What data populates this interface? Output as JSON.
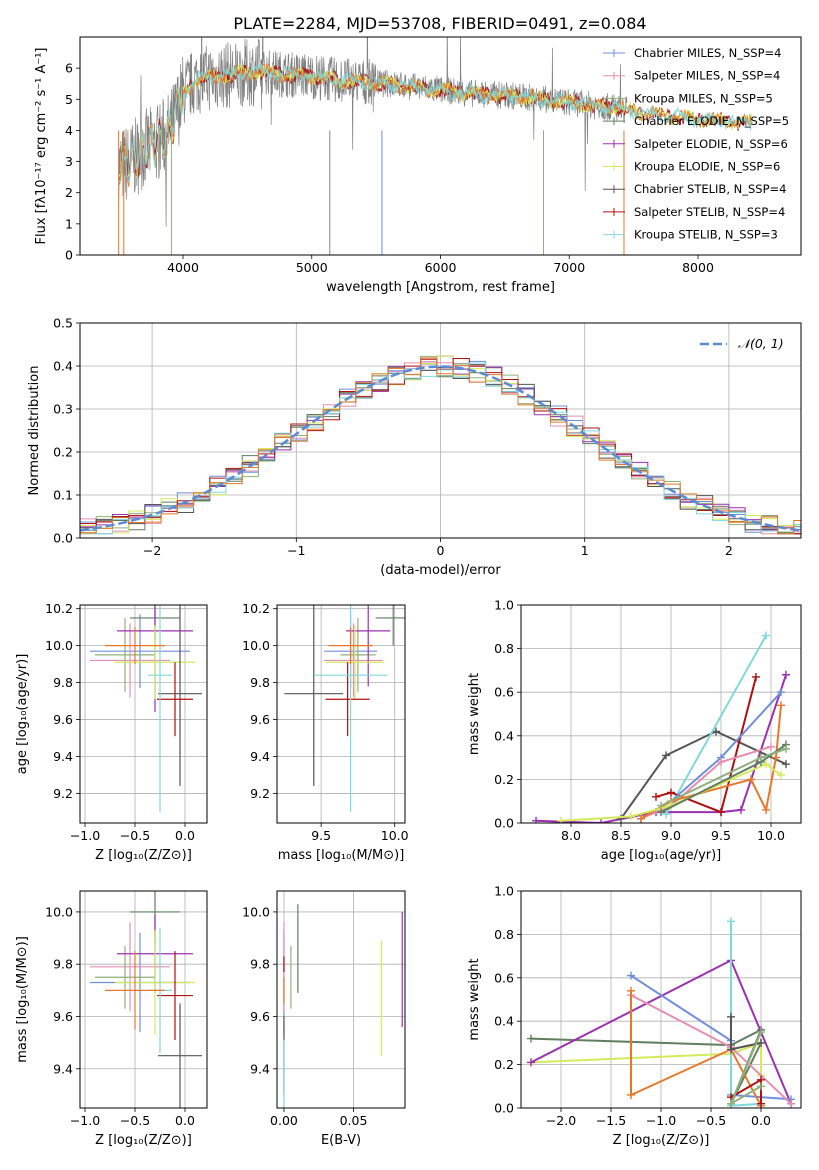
{
  "figure_title": "PLATE=2284, MJD=53708, FIBERID=0491, z=0.084",
  "colors": {
    "chabrier_miles": "#6f8fdc",
    "salpeter_miles": "#e58fb0",
    "kroupa_miles": "#8fb07a",
    "chabrier_elodie": "#5f7f5f",
    "salpeter_elodie": "#9b30b0",
    "kroupa_elodie": "#d4ea5a",
    "chabrier_stelib": "#555555",
    "salpeter_stelib": "#b01010",
    "kroupa_stelib": "#7fd8dc",
    "orange": "#e87828",
    "normal_curve": "#5b8ad6",
    "data_spectrum": "#808080",
    "grid": "#b0b0b0"
  },
  "chart_data": [
    {
      "id": "spectrum",
      "type": "line",
      "xlabel": "wavelength [Angstrom, rest frame]",
      "ylabel": "Flux [fλ10⁻¹⁷ erg cm⁻² s⁻¹ A⁻¹]",
      "xlim": [
        3200,
        8800
      ],
      "ylim": [
        0,
        7
      ],
      "xticks": [
        4000,
        5000,
        6000,
        7000,
        8000
      ],
      "yticks": [
        0,
        1,
        2,
        3,
        4,
        5,
        6
      ],
      "grid": false,
      "legend_position": "top-right",
      "data_continuum": {
        "x": [
          3500,
          3600,
          3700,
          3800,
          3900,
          4000,
          4100,
          4200,
          4400,
          4600,
          4800,
          5000,
          5200,
          5400,
          5600,
          5800,
          6000,
          6200,
          6400,
          6600,
          6800,
          7000,
          7200,
          7400,
          7600,
          7800,
          8000,
          8200,
          8400
        ],
        "y": [
          2.8,
          3.0,
          3.4,
          3.6,
          4.0,
          5.2,
          5.6,
          5.7,
          5.8,
          5.9,
          5.8,
          5.75,
          5.6,
          5.55,
          5.5,
          5.4,
          5.3,
          5.2,
          5.15,
          5.1,
          5.0,
          4.9,
          4.8,
          4.7,
          4.55,
          4.45,
          4.35,
          4.3,
          4.25
        ]
      },
      "series": [
        {
          "name": "Chabrier MILES, N_SSP=4",
          "color_key": "chabrier_miles"
        },
        {
          "name": "Salpeter MILES, N_SSP=4",
          "color_key": "salpeter_miles"
        },
        {
          "name": "Kroupa MILES, N_SSP=5",
          "color_key": "kroupa_miles"
        },
        {
          "name": "Chabrier ELODIE, N_SSP=5",
          "color_key": "chabrier_elodie"
        },
        {
          "name": "Salpeter ELODIE, N_SSP=6",
          "color_key": "salpeter_elodie"
        },
        {
          "name": "Kroupa ELODIE, N_SSP=6",
          "color_key": "kroupa_elodie"
        },
        {
          "name": "Chabrier STELIB, N_SSP=4",
          "color_key": "chabrier_stelib"
        },
        {
          "name": "Salpeter STELIB, N_SSP=4",
          "color_key": "salpeter_stelib"
        },
        {
          "name": "Kroupa STELIB, N_SSP=3",
          "color_key": "kroupa_stelib"
        }
      ]
    },
    {
      "id": "residuals",
      "type": "line",
      "xlabel": "(data-model)/error",
      "ylabel": "Normed distribution",
      "xlim": [
        -2.5,
        2.5
      ],
      "ylim": [
        0,
        0.5
      ],
      "xticks": [
        -2,
        -1,
        0,
        1,
        2
      ],
      "yticks": [
        0.0,
        0.1,
        0.2,
        0.3,
        0.4,
        0.5
      ],
      "grid": true,
      "legend_position": "top-right",
      "legend_label": "𝒩(0, 1)",
      "normal": {
        "mean": 0,
        "sigma": 1
      }
    },
    {
      "id": "age_vs_Z",
      "type": "scatter",
      "xlabel": "Z [log₁₀(Z/Z⊙)]",
      "ylabel": "age  [log₁₀(age/yr)]",
      "xlim": [
        -1.05,
        0.22
      ],
      "ylim": [
        9.04,
        10.22
      ],
      "xticks": [
        -1.0,
        -0.5,
        0.0
      ],
      "yticks": [
        9.2,
        9.4,
        9.6,
        9.8,
        10.0,
        10.2
      ],
      "grid": true,
      "points": [
        {
          "color_key": "chabrier_miles",
          "x": -0.45,
          "xerr": 0.5,
          "y": 9.97,
          "yerr": 0.2
        },
        {
          "color_key": "salpeter_miles",
          "x": -0.55,
          "xerr": 0.4,
          "y": 9.92,
          "yerr": 0.2
        },
        {
          "color_key": "kroupa_miles",
          "x": -0.6,
          "xerr": 0.3,
          "y": 9.95,
          "yerr": 0.2
        },
        {
          "color_key": "chabrier_elodie",
          "x": -0.3,
          "xerr": 0.25,
          "y": 10.15,
          "yerr": 0.12
        },
        {
          "color_key": "salpeter_elodie",
          "x": -0.3,
          "xerr": 0.38,
          "y": 10.08,
          "yerr": 0.44
        },
        {
          "color_key": "kroupa_elodie",
          "x": -0.3,
          "xerr": 0.4,
          "y": 9.91,
          "yerr": 0.2
        },
        {
          "color_key": "chabrier_stelib",
          "x": -0.05,
          "xerr": 0.22,
          "y": 9.74,
          "yerr": 0.5
        },
        {
          "color_key": "salpeter_stelib",
          "x": -0.1,
          "xerr": 0.18,
          "y": 9.71,
          "yerr": 0.2
        },
        {
          "color_key": "kroupa_stelib",
          "x": -0.25,
          "xerr": 0.12,
          "y": 9.84,
          "yerr": 0.74
        },
        {
          "color_key": "orange",
          "x": -0.5,
          "xerr": 0.3,
          "y": 10.0,
          "yerr": 0.1
        }
      ]
    },
    {
      "id": "age_vs_mass",
      "type": "scatter",
      "xlabel": "mass [log₁₀(M/M⊙)]",
      "ylabel": "",
      "xlim": [
        9.2,
        10.07
      ],
      "ylim": [
        9.04,
        10.22
      ],
      "xticks": [
        9.5,
        10.0
      ],
      "yticks": [
        9.2,
        9.4,
        9.6,
        9.8,
        10.0,
        10.2
      ],
      "grid": true,
      "points": [
        {
          "color_key": "chabrier_miles",
          "x": 9.7,
          "xerr": 0.18,
          "y": 9.97,
          "yerr": 0.2
        },
        {
          "color_key": "salpeter_miles",
          "x": 9.72,
          "xerr": 0.2,
          "y": 9.92,
          "yerr": 0.2
        },
        {
          "color_key": "kroupa_miles",
          "x": 9.75,
          "xerr": 0.12,
          "y": 9.95,
          "yerr": 0.2
        },
        {
          "color_key": "chabrier_elodie",
          "x": 9.99,
          "xerr": 0.12,
          "y": 10.15,
          "yerr": 0.15
        },
        {
          "color_key": "salpeter_elodie",
          "x": 9.82,
          "xerr": 0.15,
          "y": 10.08,
          "yerr": 0.3
        },
        {
          "color_key": "kroupa_elodie",
          "x": 9.73,
          "xerr": 0.2,
          "y": 9.91,
          "yerr": 0.2
        },
        {
          "color_key": "chabrier_stelib",
          "x": 9.45,
          "xerr": 0.2,
          "y": 9.74,
          "yerr": 0.5
        },
        {
          "color_key": "salpeter_stelib",
          "x": 9.68,
          "xerr": 0.15,
          "y": 9.71,
          "yerr": 0.2
        },
        {
          "color_key": "kroupa_stelib",
          "x": 9.7,
          "xerr": 0.25,
          "y": 9.84,
          "yerr": 0.74
        },
        {
          "color_key": "orange",
          "x": 9.7,
          "xerr": 0.15,
          "y": 10.0,
          "yerr": 0.1
        }
      ]
    },
    {
      "id": "mass_weight_vs_age",
      "type": "line",
      "xlabel": "age  [log₁₀(age/yr)]",
      "ylabel": "mass weight",
      "xlim": [
        7.5,
        10.3
      ],
      "ylim": [
        0,
        1.0
      ],
      "xticks": [
        8.0,
        8.5,
        9.0,
        9.5,
        10.0
      ],
      "yticks": [
        0.0,
        0.2,
        0.4,
        0.6,
        0.8,
        1.0
      ],
      "grid": true,
      "series": [
        {
          "color_key": "salpeter_elodie",
          "x": [
            7.65,
            8.3,
            8.85,
            9.5,
            9.7,
            10.15
          ],
          "y": [
            0.01,
            0.0,
            0.05,
            0.05,
            0.06,
            0.68
          ]
        },
        {
          "color_key": "chabrier_stelib",
          "x": [
            8.5,
            8.95,
            9.45,
            10.15
          ],
          "y": [
            0.02,
            0.31,
            0.42,
            0.27
          ]
        },
        {
          "color_key": "kroupa_stelib",
          "x": [
            8.95,
            9.95
          ],
          "y": [
            0.04,
            0.86
          ]
        },
        {
          "color_key": "salpeter_stelib",
          "x": [
            8.85,
            9.0,
            9.5,
            9.85
          ],
          "y": [
            0.12,
            0.14,
            0.05,
            0.67
          ]
        },
        {
          "color_key": "chabrier_miles",
          "x": [
            8.7,
            9.0,
            9.5,
            10.1
          ],
          "y": [
            0.02,
            0.1,
            0.3,
            0.6
          ]
        },
        {
          "color_key": "salpeter_miles",
          "x": [
            8.7,
            9.0,
            9.5,
            10.0
          ],
          "y": [
            0.02,
            0.08,
            0.28,
            0.35
          ]
        },
        {
          "color_key": "orange",
          "x": [
            8.7,
            9.0,
            9.8,
            9.95,
            10.05,
            10.1
          ],
          "y": [
            0.02,
            0.1,
            0.2,
            0.06,
            0.3,
            0.54
          ]
        },
        {
          "color_key": "kroupa_elodie",
          "x": [
            7.9,
            8.6,
            9.0,
            9.95,
            10.1
          ],
          "y": [
            0.01,
            0.03,
            0.08,
            0.27,
            0.22
          ]
        },
        {
          "color_key": "chabrier_elodie",
          "x": [
            8.9,
            9.9,
            10.15
          ],
          "y": [
            0.05,
            0.28,
            0.36
          ]
        },
        {
          "color_key": "kroupa_miles",
          "x": [
            8.9,
            9.9,
            10.15
          ],
          "y": [
            0.08,
            0.3,
            0.34
          ]
        }
      ]
    },
    {
      "id": "mass_vs_Z",
      "type": "scatter",
      "xlabel": "Z [log₁₀(Z/Z⊙)]",
      "ylabel": "mass [log₁₀(M/M⊙)]",
      "xlim": [
        -1.05,
        0.22
      ],
      "ylim": [
        9.25,
        10.08
      ],
      "xticks": [
        -1.0,
        -0.5,
        0.0
      ],
      "yticks": [
        9.4,
        9.6,
        9.8,
        10.0
      ],
      "grid": true,
      "points": [
        {
          "color_key": "chabrier_miles",
          "x": -0.45,
          "xerr": 0.5,
          "y": 9.73,
          "yerr": 0.19
        },
        {
          "color_key": "salpeter_miles",
          "x": -0.55,
          "xerr": 0.4,
          "y": 9.79,
          "yerr": 0.17
        },
        {
          "color_key": "kroupa_miles",
          "x": -0.6,
          "xerr": 0.3,
          "y": 9.75,
          "yerr": 0.12
        },
        {
          "color_key": "chabrier_elodie",
          "x": -0.3,
          "xerr": 0.25,
          "y": 10.0,
          "yerr": 0.12
        },
        {
          "color_key": "salpeter_elodie",
          "x": -0.3,
          "xerr": 0.38,
          "y": 9.84,
          "yerr": 0.15
        },
        {
          "color_key": "kroupa_elodie",
          "x": -0.3,
          "xerr": 0.4,
          "y": 9.73,
          "yerr": 0.2
        },
        {
          "color_key": "chabrier_stelib",
          "x": -0.05,
          "xerr": 0.22,
          "y": 9.45,
          "yerr": 0.2
        },
        {
          "color_key": "salpeter_stelib",
          "x": -0.1,
          "xerr": 0.18,
          "y": 9.68,
          "yerr": 0.17
        },
        {
          "color_key": "kroupa_stelib",
          "x": -0.25,
          "xerr": 0.12,
          "y": 9.7,
          "yerr": 0.24
        },
        {
          "color_key": "orange",
          "x": -0.5,
          "xerr": 0.3,
          "y": 9.7,
          "yerr": 0.15
        }
      ]
    },
    {
      "id": "mass_vs_ebv",
      "type": "scatter",
      "xlabel": "E(B-V)",
      "ylabel": "",
      "xlim": [
        -0.005,
        0.087
      ],
      "ylim": [
        9.25,
        10.08
      ],
      "xticks": [
        0.0,
        0.05
      ],
      "yticks": [
        9.4,
        9.6,
        9.8,
        10.0
      ],
      "grid": true,
      "points": [
        {
          "color_key": "chabrier_miles",
          "x": 0.0,
          "xerr": 0.0,
          "y": 9.73,
          "yerr": 0.2
        },
        {
          "color_key": "salpeter_miles",
          "x": 0.0,
          "xerr": 0.0,
          "y": 9.79,
          "yerr": 0.17
        },
        {
          "color_key": "kroupa_miles",
          "x": 0.005,
          "xerr": 0.0,
          "y": 9.75,
          "yerr": 0.12
        },
        {
          "color_key": "chabrier_elodie",
          "x": 0.01,
          "xerr": 0.0,
          "y": 9.86,
          "yerr": 0.17
        },
        {
          "color_key": "salpeter_elodie",
          "x": 0.085,
          "xerr": 0.0,
          "y": 9.78,
          "yerr": 0.22
        },
        {
          "color_key": "kroupa_elodie",
          "x": 0.07,
          "xerr": 0.0,
          "y": 9.67,
          "yerr": 0.22
        },
        {
          "color_key": "chabrier_stelib",
          "x": 0.0,
          "xerr": 0.0,
          "y": 9.45,
          "yerr": 0.15
        },
        {
          "color_key": "salpeter_stelib",
          "x": 0.0,
          "xerr": 0.0,
          "y": 9.8,
          "yerr": 0.03
        },
        {
          "color_key": "kroupa_stelib",
          "x": 0.0,
          "xerr": 0.0,
          "y": 9.38,
          "yerr": 0.13
        },
        {
          "color_key": "orange",
          "x": 0.0,
          "xerr": 0.0,
          "y": 9.7,
          "yerr": 0.05
        }
      ]
    },
    {
      "id": "mass_weight_vs_Z",
      "type": "line",
      "xlabel": "Z [log₁₀(Z/Z⊙)]",
      "ylabel": "mass weight",
      "xlim": [
        -2.4,
        0.4
      ],
      "ylim": [
        0,
        1.0
      ],
      "xticks": [
        -2.0,
        -1.5,
        -1.0,
        -0.5,
        0.0
      ],
      "yticks": [
        0.0,
        0.2,
        0.4,
        0.6,
        0.8,
        1.0
      ],
      "grid": true,
      "series": [
        {
          "color_key": "chabrier_elodie",
          "x": [
            -2.3,
            -0.3,
            0.0,
            -0.3,
            0.0
          ],
          "y": [
            0.32,
            0.29,
            0.36,
            0.02,
            0.3
          ]
        },
        {
          "color_key": "kroupa_elodie",
          "x": [
            -2.3,
            -0.3,
            0.0,
            0.0
          ],
          "y": [
            0.21,
            0.25,
            0.3,
            0.15
          ]
        },
        {
          "color_key": "salpeter_elodie",
          "x": [
            -2.3,
            -0.3,
            0.3
          ],
          "y": [
            0.21,
            0.68,
            0.02
          ]
        },
        {
          "color_key": "chabrier_miles",
          "x": [
            -1.3,
            -0.3,
            -0.3,
            0.3
          ],
          "y": [
            0.61,
            0.31,
            0.06,
            0.04
          ]
        },
        {
          "color_key": "salpeter_miles",
          "x": [
            -1.3,
            -0.3,
            0.3
          ],
          "y": [
            0.52,
            0.28,
            0.02
          ]
        },
        {
          "color_key": "orange",
          "x": [
            -1.3,
            -1.3,
            -0.3,
            0.0
          ],
          "y": [
            0.54,
            0.06,
            0.27,
            0.01
          ]
        },
        {
          "color_key": "kroupa_stelib",
          "x": [
            -0.3,
            -0.3,
            0.0
          ],
          "y": [
            0.86,
            0.01,
            0.02
          ]
        },
        {
          "color_key": "salpeter_stelib",
          "x": [
            -0.3,
            0.0,
            0.0
          ],
          "y": [
            0.05,
            0.13,
            0.02
          ]
        },
        {
          "color_key": "chabrier_stelib",
          "x": [
            -0.3,
            -0.3,
            0.0
          ],
          "y": [
            0.42,
            0.27,
            0.3
          ]
        },
        {
          "color_key": "kroupa_miles",
          "x": [
            0.0,
            -0.3,
            0.0
          ],
          "y": [
            0.35,
            0.02,
            0.1
          ]
        }
      ]
    }
  ]
}
